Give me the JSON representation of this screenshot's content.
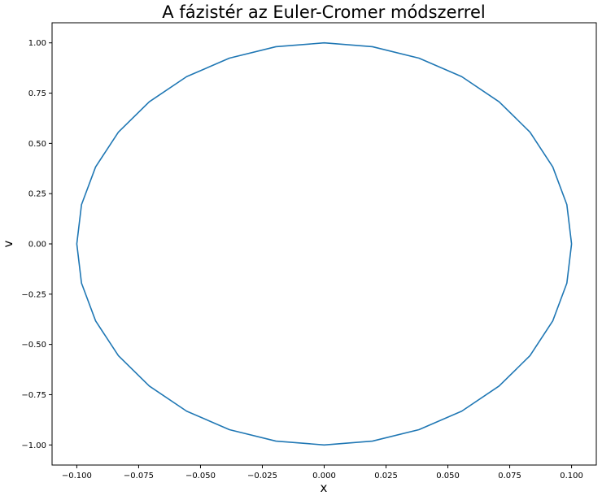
{
  "chart_data": {
    "type": "line",
    "title": "A fázistér az Euler-Cromer módszerrel",
    "xlabel": "x",
    "ylabel": "v",
    "xlim": [
      -0.11,
      0.11
    ],
    "ylim": [
      -1.1,
      1.1
    ],
    "xticks": [
      -0.1,
      -0.075,
      -0.05,
      -0.025,
      0.0,
      0.025,
      0.05,
      0.075,
      0.1
    ],
    "xtick_labels": [
      "−0.100",
      "−0.075",
      "−0.050",
      "−0.025",
      "0.000",
      "0.025",
      "0.050",
      "0.075",
      "0.100"
    ],
    "yticks": [
      1.0,
      0.75,
      0.5,
      0.25,
      0.0,
      -0.25,
      -0.5,
      -0.75,
      -1.0
    ],
    "ytick_labels": [
      "1.00",
      "0.75",
      "0.50",
      "0.25",
      "0.00",
      "−0.25",
      "−0.50",
      "−0.75",
      "−1.00"
    ],
    "grid": false,
    "series": [
      {
        "color": "#1f77b4",
        "x": [
          0.1,
          0.0981,
          0.0924,
          0.0832,
          0.0707,
          0.0556,
          0.0383,
          0.0195,
          0.0,
          -0.0195,
          -0.0383,
          -0.0556,
          -0.0707,
          -0.0832,
          -0.0924,
          -0.0981,
          -0.1,
          -0.0981,
          -0.0924,
          -0.0832,
          -0.0707,
          -0.0556,
          -0.0383,
          -0.0195,
          0.0,
          0.0195,
          0.0383,
          0.0556,
          0.0707,
          0.0832,
          0.0924,
          0.0981,
          0.1
        ],
        "y": [
          0.0,
          -0.195,
          -0.383,
          -0.556,
          -0.707,
          -0.832,
          -0.924,
          -0.981,
          -1.0,
          -0.981,
          -0.924,
          -0.832,
          -0.707,
          -0.556,
          -0.383,
          -0.195,
          0.0,
          0.195,
          0.383,
          0.556,
          0.707,
          0.832,
          0.924,
          0.981,
          1.0,
          0.981,
          0.924,
          0.832,
          0.707,
          0.556,
          0.383,
          0.195,
          0.0
        ]
      }
    ]
  }
}
